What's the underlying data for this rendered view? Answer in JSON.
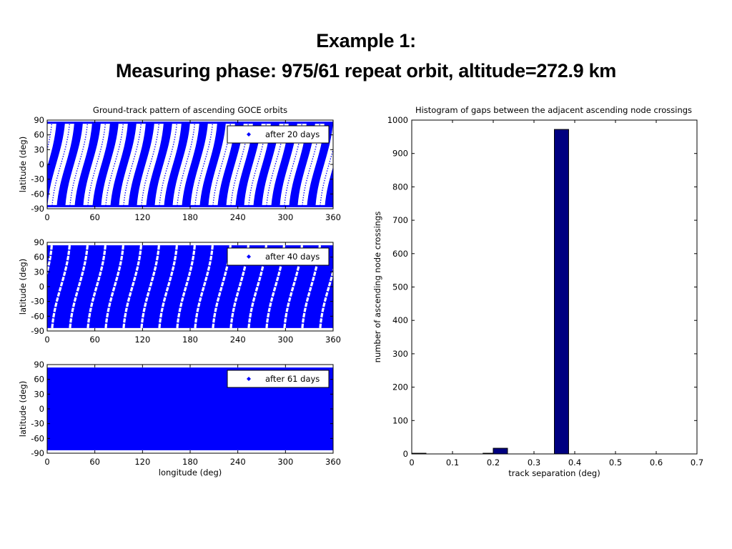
{
  "slide": {
    "title_line1": "Example 1:",
    "title_line2": "Measuring phase: 975/61 repeat orbit, altitude=272.9 km"
  },
  "chart_data": [
    {
      "type": "scatter",
      "title": "Ground-track pattern of ascending GOCE orbits",
      "xlabel": "",
      "ylabel": "latitude (deg)",
      "xlim": [
        0,
        360
      ],
      "ylim": [
        -90,
        90
      ],
      "xticks": [
        0,
        60,
        120,
        180,
        240,
        300,
        360
      ],
      "yticks": [
        90,
        60,
        30,
        0,
        -30,
        -60,
        -90
      ],
      "color": "#0000ff",
      "legend": {
        "label": "after 20 days",
        "placement": "top-right"
      },
      "tracks": {
        "count": 16,
        "first_equator_crossing_lon": 6,
        "spacing_lon": 22.5,
        "lon_span_pole_to_pole": 22
      }
    },
    {
      "type": "scatter",
      "title": "",
      "xlabel": "",
      "ylabel": "latitude (deg)",
      "xlim": [
        0,
        360
      ],
      "ylim": [
        -90,
        90
      ],
      "xticks": [
        0,
        60,
        120,
        180,
        240,
        300,
        360
      ],
      "yticks": [
        90,
        60,
        30,
        0,
        -30,
        -60,
        -90
      ],
      "color": "#0000ff",
      "legend": {
        "label": "after 40 days",
        "placement": "top-right"
      },
      "gaps": {
        "count": 16,
        "first_equator_crossing_lon": 6,
        "spacing_lon": 22.5,
        "lon_span_pole_to_pole": 22
      }
    },
    {
      "type": "scatter",
      "title": "",
      "xlabel": "longitude (deg)",
      "ylabel": "latitude (deg)",
      "xlim": [
        0,
        360
      ],
      "ylim": [
        -90,
        90
      ],
      "xticks": [
        0,
        60,
        120,
        180,
        240,
        300,
        360
      ],
      "yticks": [
        90,
        60,
        30,
        0,
        -30,
        -60,
        -90
      ],
      "color": "#0000ff",
      "legend": {
        "label": "after 61 days",
        "placement": "top-right"
      },
      "coverage": "full"
    },
    {
      "type": "bar",
      "title": "Histogram of gaps between the adjacent ascending node crossings",
      "xlabel": "track separation (deg)",
      "ylabel": "number of ascending node crossings",
      "xlim": [
        0,
        0.7
      ],
      "ylim": [
        0,
        1000
      ],
      "xticks": [
        0,
        0.1,
        0.2,
        0.3,
        0.4,
        0.5,
        0.6,
        0.7
      ],
      "yticks": [
        0,
        100,
        200,
        300,
        400,
        500,
        600,
        700,
        800,
        900,
        1000
      ],
      "bar_width": 0.035,
      "bar_color": "#000080",
      "x": [
        0.0175,
        0.1925,
        0.2175,
        0.3675
      ],
      "values": [
        2,
        2,
        17,
        972
      ]
    }
  ]
}
